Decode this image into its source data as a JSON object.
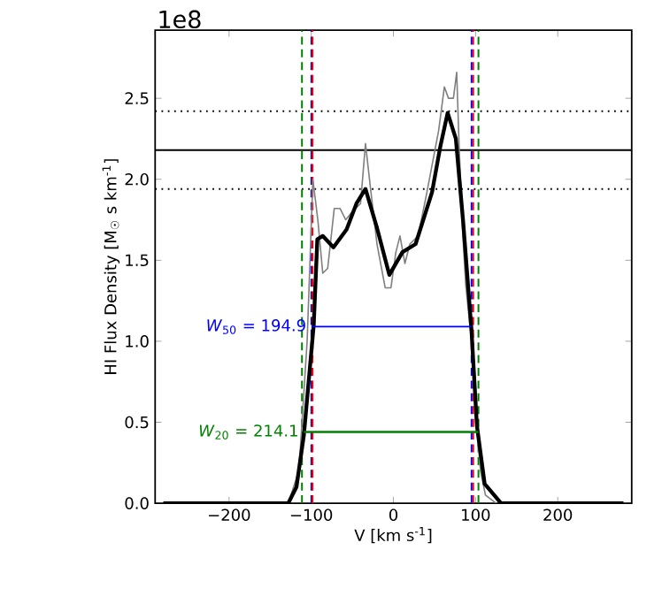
{
  "chart_data": {
    "type": "line",
    "xlabel": "V [km s$^{-1}$]",
    "ylabel": "HI Flux Density [M$_{☉}$ s km$^{-1}$]",
    "xlim": [
      -290,
      290
    ],
    "ylim": [
      0,
      2.92
    ],
    "xticks": [
      {
        "value": -200,
        "label": "−200"
      },
      {
        "value": -100,
        "label": "−100"
      },
      0,
      100,
      200
    ],
    "yticks": [
      {
        "value": 0,
        "label": "0.0"
      },
      {
        "value": 0.5,
        "label": "0.5"
      },
      {
        "value": 1,
        "label": "1.0"
      },
      {
        "value": 1.5,
        "label": "1.5"
      },
      {
        "value": 2,
        "label": "2.0"
      },
      {
        "value": 2.5,
        "label": "2.5"
      }
    ],
    "series": [
      {
        "color": "#808080",
        "x": [
          -128,
          -115,
          -105,
          -98,
          -92,
          -86,
          -80,
          -72,
          -65,
          -58,
          -50,
          -40,
          -34,
          -28,
          -20,
          -10,
          -3,
          3,
          8,
          14,
          20,
          30,
          40,
          55,
          62,
          67,
          73,
          77,
          80,
          84,
          88,
          95,
          100,
          106,
          112,
          125
        ],
        "values": [
          0,
          0.2,
          1.0,
          2.0,
          1.75,
          1.42,
          1.45,
          1.82,
          1.82,
          1.75,
          1.8,
          1.85,
          2.22,
          1.95,
          1.6,
          1.33,
          1.33,
          1.55,
          1.65,
          1.48,
          1.6,
          1.65,
          1.9,
          2.3,
          2.57,
          2.5,
          2.5,
          2.66,
          2.2,
          1.7,
          1.35,
          1.0,
          0.55,
          0.2,
          0.05,
          0
        ]
      },
      {
        "color": "#000000",
        "x": [
          -280,
          -128,
          -118,
          -109,
          -97,
          -92.6,
          -86,
          -73,
          -57,
          -45,
          -34,
          -20,
          -5,
          11,
          27,
          47,
          57,
          66,
          76,
          85,
          95,
          101.6,
          111,
          131,
          280
        ],
        "values": [
          0,
          0,
          0.1,
          0.42,
          1.1,
          1.63,
          1.65,
          1.58,
          1.69,
          1.85,
          1.94,
          1.7,
          1.41,
          1.55,
          1.6,
          1.92,
          2.2,
          2.41,
          2.25,
          1.73,
          1.07,
          0.48,
          0.12,
          0,
          0
        ]
      },
      {
        "color": "#0000ff",
        "x": [
          -99.8,
          95.1
        ],
        "values": [
          1.09,
          1.09
        ]
      },
      {
        "color": "#008000",
        "x": [
          -109,
          103.5
        ],
        "values": [
          0.44,
          0.44
        ]
      }
    ],
    "ref_lines": [
      {
        "axis": "y",
        "value": 2.18,
        "color": "#000000",
        "line_style": "solid"
      },
      {
        "axis": "y",
        "value": 2.42,
        "color": "#000000",
        "line_style": "dotted"
      },
      {
        "axis": "y",
        "value": 1.94,
        "color": "#000000",
        "line_style": "dotted"
      },
      {
        "axis": "x",
        "value": -111.3,
        "color": "#008000",
        "line_style": "dashed"
      },
      {
        "axis": "x",
        "value": 103.5,
        "color": "#008000",
        "line_style": "dashed"
      },
      {
        "axis": "x",
        "value": -99.8,
        "color": "#0000ff",
        "line_style": "dashed"
      },
      {
        "axis": "x",
        "value": 95.1,
        "color": "#0000ff",
        "line_style": "dashed"
      },
      {
        "axis": "x",
        "value": -98.4,
        "color": "#ff0000",
        "line_style": "dashed"
      },
      {
        "axis": "x",
        "value": 97.1,
        "color": "#ff0000",
        "line_style": "dashed"
      }
    ],
    "annotations": [
      "1e8",
      {
        "text": "*W*$_{50}$ = 194.9",
        "x": -99.8,
        "y": 1.09
      },
      {
        "text": "*W*$_{20}$ = 214.1",
        "x": -109,
        "y": 0.44
      }
    ]
  }
}
